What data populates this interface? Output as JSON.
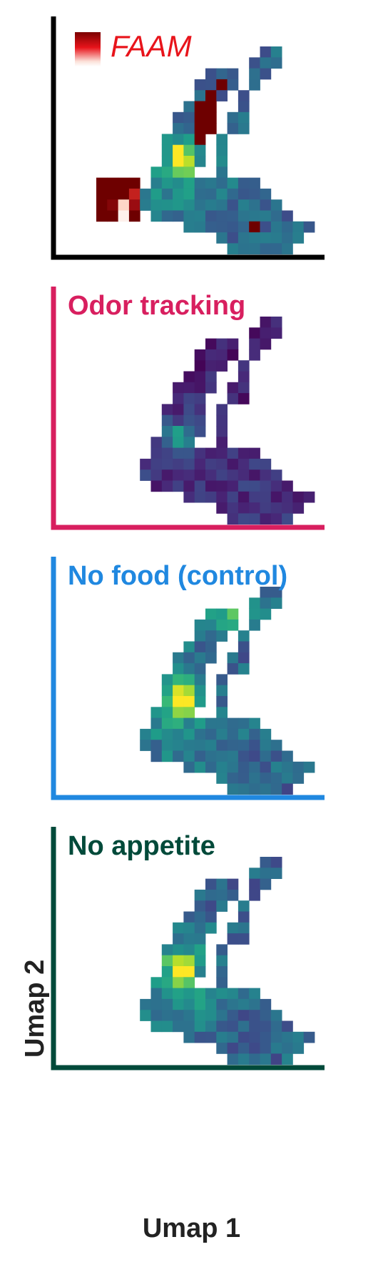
{
  "figure": {
    "xlabel": "Umap 1",
    "ylabel": "Umap 2"
  },
  "chart_data": [
    {
      "type": "heatmap",
      "title": "FAAM",
      "title_color": "#e8141b",
      "axis_color": "#000000",
      "colormap": "reds",
      "legend": "FAAM",
      "grid": false
    },
    {
      "type": "heatmap",
      "title": "Odor tracking",
      "title_color": "#d81f5f",
      "axis_color": "#d81f5f",
      "colormap": "viridis",
      "grid": false
    },
    {
      "type": "heatmap",
      "title": "No food (control)",
      "title_color": "#2088e0",
      "axis_color": "#2088e0",
      "colormap": "viridis",
      "grid": false
    },
    {
      "type": "heatmap",
      "title": "No appetite",
      "title_color": "#004a3a",
      "axis_color": "#004a3a",
      "colormap": "viridis",
      "grid": false
    }
  ]
}
